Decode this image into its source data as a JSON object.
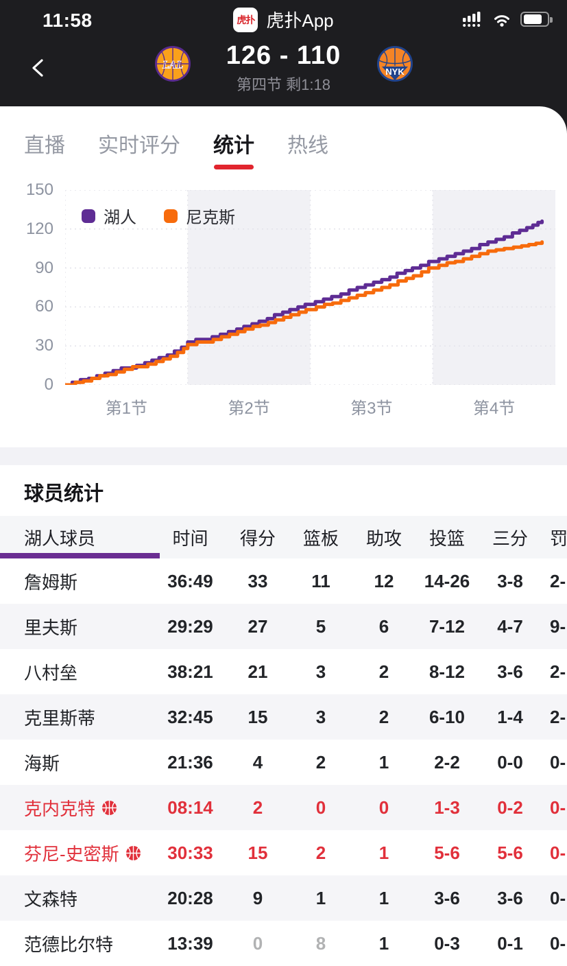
{
  "status_bar": {
    "time": "11:58",
    "logo_text": "虎扑",
    "app_name": "虎扑App"
  },
  "header": {
    "score": "126 - 110",
    "status_text": "第四节 剩1:18",
    "home_abbr": "LAL",
    "away_abbr": "NYK"
  },
  "tabs": [
    {
      "label": "直播",
      "active": false
    },
    {
      "label": "实时评分",
      "active": false
    },
    {
      "label": "统计",
      "active": true
    },
    {
      "label": "热线",
      "active": false
    }
  ],
  "chart_data": {
    "type": "line",
    "style": "step-after",
    "x_ticks": [
      "第1节",
      "第2节",
      "第3节",
      "第4节"
    ],
    "y_ticks": [
      0,
      30,
      60,
      90,
      120,
      150
    ],
    "xlim_minutes": [
      0,
      48
    ],
    "ylim": [
      0,
      150
    ],
    "grid": "dashed",
    "legend_position": "top-left",
    "shaded_quarter_bands_minutes": [
      [
        12,
        24
      ],
      [
        36,
        48
      ]
    ],
    "band_color": "#f1f1f5",
    "series": [
      {
        "name": "湖人",
        "color": "#5e2c94",
        "points": [
          [
            0,
            0
          ],
          [
            0.7,
            2
          ],
          [
            1.5,
            4
          ],
          [
            2.3,
            5
          ],
          [
            3.1,
            7
          ],
          [
            3.9,
            9
          ],
          [
            4.7,
            11
          ],
          [
            5.5,
            13
          ],
          [
            6.3,
            13
          ],
          [
            7.0,
            15
          ],
          [
            7.8,
            17
          ],
          [
            8.5,
            19
          ],
          [
            9.2,
            21
          ],
          [
            10.0,
            23
          ],
          [
            10.7,
            26
          ],
          [
            11.4,
            29
          ],
          [
            12.0,
            33
          ],
          [
            12.8,
            35
          ],
          [
            13.6,
            35
          ],
          [
            14.4,
            37
          ],
          [
            15.2,
            39
          ],
          [
            16.0,
            41
          ],
          [
            16.8,
            43
          ],
          [
            17.5,
            45
          ],
          [
            18.3,
            47
          ],
          [
            19.0,
            49
          ],
          [
            19.8,
            51
          ],
          [
            20.5,
            54
          ],
          [
            21.3,
            56
          ],
          [
            22.0,
            58
          ],
          [
            22.8,
            60
          ],
          [
            23.5,
            62
          ],
          [
            24.5,
            64
          ],
          [
            25.3,
            66
          ],
          [
            26.1,
            68
          ],
          [
            27.0,
            70
          ],
          [
            27.8,
            73
          ],
          [
            28.6,
            75
          ],
          [
            29.4,
            77
          ],
          [
            30.2,
            79
          ],
          [
            31.0,
            81
          ],
          [
            31.8,
            83
          ],
          [
            32.5,
            86
          ],
          [
            33.3,
            88
          ],
          [
            34.0,
            90
          ],
          [
            34.8,
            92
          ],
          [
            35.6,
            95
          ],
          [
            36.6,
            97
          ],
          [
            37.4,
            99
          ],
          [
            38.2,
            101
          ],
          [
            39.0,
            103
          ],
          [
            39.8,
            105
          ],
          [
            40.6,
            108
          ],
          [
            41.4,
            110
          ],
          [
            42.2,
            112
          ],
          [
            43.0,
            114
          ],
          [
            43.8,
            117
          ],
          [
            44.5,
            119
          ],
          [
            45.2,
            121
          ],
          [
            45.8,
            123
          ],
          [
            46.3,
            125
          ],
          [
            46.7,
            126
          ]
        ]
      },
      {
        "name": "尼克斯",
        "color": "#f76b0c",
        "points": [
          [
            0,
            0
          ],
          [
            1.0,
            2
          ],
          [
            1.8,
            3
          ],
          [
            2.6,
            5
          ],
          [
            3.4,
            7
          ],
          [
            4.2,
            8
          ],
          [
            5.0,
            10
          ],
          [
            5.8,
            12
          ],
          [
            6.6,
            14
          ],
          [
            7.4,
            14
          ],
          [
            8.1,
            16
          ],
          [
            8.9,
            18
          ],
          [
            9.6,
            20
          ],
          [
            10.3,
            22
          ],
          [
            11.0,
            25
          ],
          [
            11.6,
            28
          ],
          [
            12.0,
            31
          ],
          [
            12.9,
            33
          ],
          [
            13.7,
            33
          ],
          [
            14.5,
            35
          ],
          [
            15.3,
            37
          ],
          [
            16.1,
            39
          ],
          [
            16.9,
            41
          ],
          [
            17.6,
            43
          ],
          [
            18.4,
            45
          ],
          [
            19.1,
            46
          ],
          [
            19.9,
            48
          ],
          [
            20.6,
            50
          ],
          [
            21.4,
            52
          ],
          [
            22.1,
            54
          ],
          [
            22.9,
            56
          ],
          [
            23.6,
            58
          ],
          [
            24.6,
            60
          ],
          [
            25.4,
            62
          ],
          [
            26.2,
            63
          ],
          [
            27.0,
            65
          ],
          [
            27.8,
            67
          ],
          [
            28.6,
            69
          ],
          [
            29.4,
            71
          ],
          [
            30.2,
            73
          ],
          [
            31.0,
            75
          ],
          [
            31.8,
            77
          ],
          [
            32.6,
            80
          ],
          [
            33.4,
            82
          ],
          [
            34.1,
            84
          ],
          [
            34.9,
            87
          ],
          [
            35.6,
            90
          ],
          [
            36.6,
            92
          ],
          [
            37.4,
            94
          ],
          [
            38.2,
            95
          ],
          [
            39.0,
            97
          ],
          [
            39.8,
            99
          ],
          [
            40.6,
            101
          ],
          [
            41.4,
            103
          ],
          [
            42.2,
            104
          ],
          [
            43.0,
            105
          ],
          [
            43.9,
            106
          ],
          [
            44.7,
            107
          ],
          [
            45.4,
            108
          ],
          [
            46.1,
            109
          ],
          [
            46.7,
            110
          ]
        ]
      }
    ]
  },
  "players": {
    "title": "球员统计",
    "team_tab": "湖人球员",
    "columns": [
      "时间",
      "得分",
      "篮板",
      "助攻",
      "投篮",
      "三分",
      "罚"
    ],
    "rows": [
      {
        "name": "詹姆斯",
        "ball_icon": false,
        "highlight": false,
        "time": "36:49",
        "pts": "33",
        "reb": "11",
        "ast": "12",
        "fg": "14-26",
        "tp": "3-8",
        "ft": "2-",
        "flash": []
      },
      {
        "name": "里夫斯",
        "ball_icon": false,
        "highlight": false,
        "time": "29:29",
        "pts": "27",
        "reb": "5",
        "ast": "6",
        "fg": "7-12",
        "tp": "4-7",
        "ft": "9-",
        "flash": []
      },
      {
        "name": "八村垒",
        "ball_icon": false,
        "highlight": false,
        "time": "38:21",
        "pts": "21",
        "reb": "3",
        "ast": "2",
        "fg": "8-12",
        "tp": "3-6",
        "ft": "2-",
        "flash": []
      },
      {
        "name": "克里斯蒂",
        "ball_icon": false,
        "highlight": false,
        "time": "32:45",
        "pts": "15",
        "reb": "3",
        "ast": "2",
        "fg": "6-10",
        "tp": "1-4",
        "ft": "2-",
        "flash": []
      },
      {
        "name": "海斯",
        "ball_icon": false,
        "highlight": false,
        "time": "21:36",
        "pts": "4",
        "reb": "2",
        "ast": "1",
        "fg": "2-2",
        "tp": "0-0",
        "ft": "0-",
        "flash": []
      },
      {
        "name": "克内克特",
        "ball_icon": true,
        "highlight": true,
        "time": "08:14",
        "pts": "2",
        "reb": "0",
        "ast": "0",
        "fg": "1-3",
        "tp": "0-2",
        "ft": "0-",
        "flash": []
      },
      {
        "name": "芬尼-史密斯",
        "ball_icon": true,
        "highlight": true,
        "time": "30:33",
        "pts": "15",
        "reb": "2",
        "ast": "1",
        "fg": "5-6",
        "tp": "5-6",
        "ft": "0-",
        "flash": []
      },
      {
        "name": "文森特",
        "ball_icon": false,
        "highlight": false,
        "time": "20:28",
        "pts": "9",
        "reb": "1",
        "ast": "1",
        "fg": "3-6",
        "tp": "3-6",
        "ft": "0-",
        "flash": []
      },
      {
        "name": "范德比尔特",
        "ball_icon": false,
        "highlight": false,
        "time": "13:39",
        "pts": "0",
        "reb": "8",
        "ast": "1",
        "fg": "0-3",
        "tp": "0-1",
        "ft": "0-",
        "flash": [
          "pts",
          "reb"
        ]
      }
    ]
  }
}
